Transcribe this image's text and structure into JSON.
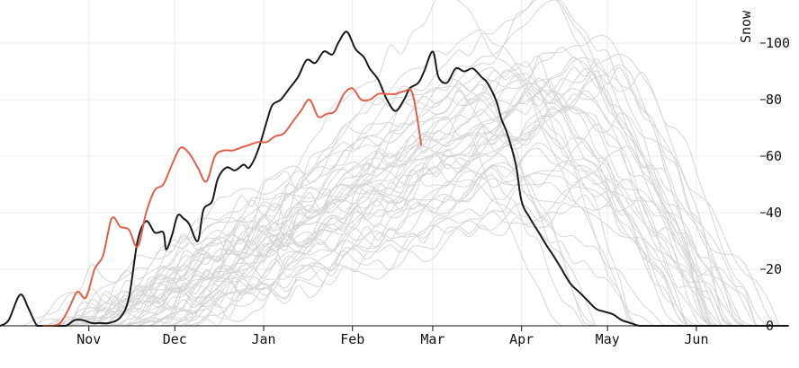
{
  "chart_data": {
    "type": "line",
    "ylabel": "Snow",
    "ylim": [
      0,
      115
    ],
    "y_ticks": [
      0,
      20,
      40,
      60,
      80,
      100
    ],
    "x_range": [
      "Oct 1",
      "Jun 30"
    ],
    "x_ticks": [
      {
        "label": "Nov",
        "day": 31
      },
      {
        "label": "Dec",
        "day": 61
      },
      {
        "label": "Jan",
        "day": 92
      },
      {
        "label": "Feb",
        "day": 123
      },
      {
        "label": "Mar",
        "day": 151
      },
      {
        "label": "Apr",
        "day": 182
      },
      {
        "label": "May",
        "day": 212
      },
      {
        "label": "Jun",
        "day": 243
      }
    ],
    "grid": true,
    "colors": {
      "historical": "#d6d6d6",
      "highlight": "#1a1a1a",
      "current": "#e0604a",
      "grid": "#ececec",
      "axis": "#111111"
    },
    "historical_series_count": 45,
    "series": [
      {
        "role": "highlight",
        "color": "#1a1a1a",
        "x": [
          0,
          3,
          7,
          10,
          13,
          16,
          19,
          23,
          26,
          29,
          32,
          35,
          38,
          42,
          45,
          48,
          51,
          54,
          57,
          58,
          60,
          62,
          64,
          66,
          69,
          71,
          74,
          76,
          79,
          82,
          85,
          87,
          90,
          93,
          95,
          98,
          101,
          104,
          107,
          110,
          113,
          116,
          118,
          121,
          124,
          127,
          129,
          132,
          135,
          138,
          141,
          143,
          146,
          148,
          151,
          153,
          156,
          159,
          162,
          165,
          168,
          170,
          173,
          175,
          177,
          180,
          182,
          185,
          188,
          191,
          193,
          196,
          199,
          202,
          205,
          208,
          211,
          214,
          217,
          220,
          223,
          226,
          229,
          232,
          235,
          238,
          241,
          245,
          249,
          255,
          265,
          275
        ],
        "y": [
          0,
          2,
          11,
          6,
          0,
          0,
          0,
          0,
          2,
          2,
          1,
          1,
          1,
          3,
          10,
          30,
          37,
          33,
          33,
          27,
          32,
          39,
          38,
          36,
          30,
          41,
          44,
          52,
          56,
          55,
          57,
          56,
          62,
          72,
          78,
          80,
          84,
          88,
          94,
          93,
          97,
          96,
          100,
          104,
          98,
          95,
          91,
          87,
          80,
          76,
          80,
          84,
          86,
          90,
          97,
          88,
          86,
          91,
          90,
          91,
          88,
          86,
          80,
          73,
          68,
          57,
          44,
          38,
          33,
          28,
          25,
          20,
          15,
          12,
          9,
          6,
          5,
          4,
          2,
          1,
          0,
          0,
          0,
          0,
          0,
          0,
          0,
          0,
          0,
          0,
          0,
          0
        ]
      },
      {
        "role": "current",
        "color": "#e0604a",
        "x": [
          15,
          18,
          21,
          24,
          27,
          30,
          33,
          36,
          39,
          42,
          45,
          48,
          51,
          54,
          57,
          60,
          63,
          66,
          69,
          72,
          75,
          78,
          81,
          84,
          87,
          90,
          93,
          96,
          99,
          102,
          105,
          108,
          111,
          114,
          117,
          120,
          123,
          126,
          129,
          132,
          135,
          138,
          141,
          144,
          147
        ],
        "y": [
          0,
          0,
          1,
          6,
          12,
          10,
          20,
          25,
          38,
          35,
          34,
          28,
          40,
          48,
          50,
          57,
          63,
          61,
          56,
          51,
          60,
          62,
          62,
          63,
          64,
          65,
          65,
          67,
          68,
          72,
          76,
          80,
          74,
          75,
          76,
          82,
          84,
          80,
          80,
          82,
          82,
          82,
          83,
          82,
          64
        ]
      }
    ]
  }
}
